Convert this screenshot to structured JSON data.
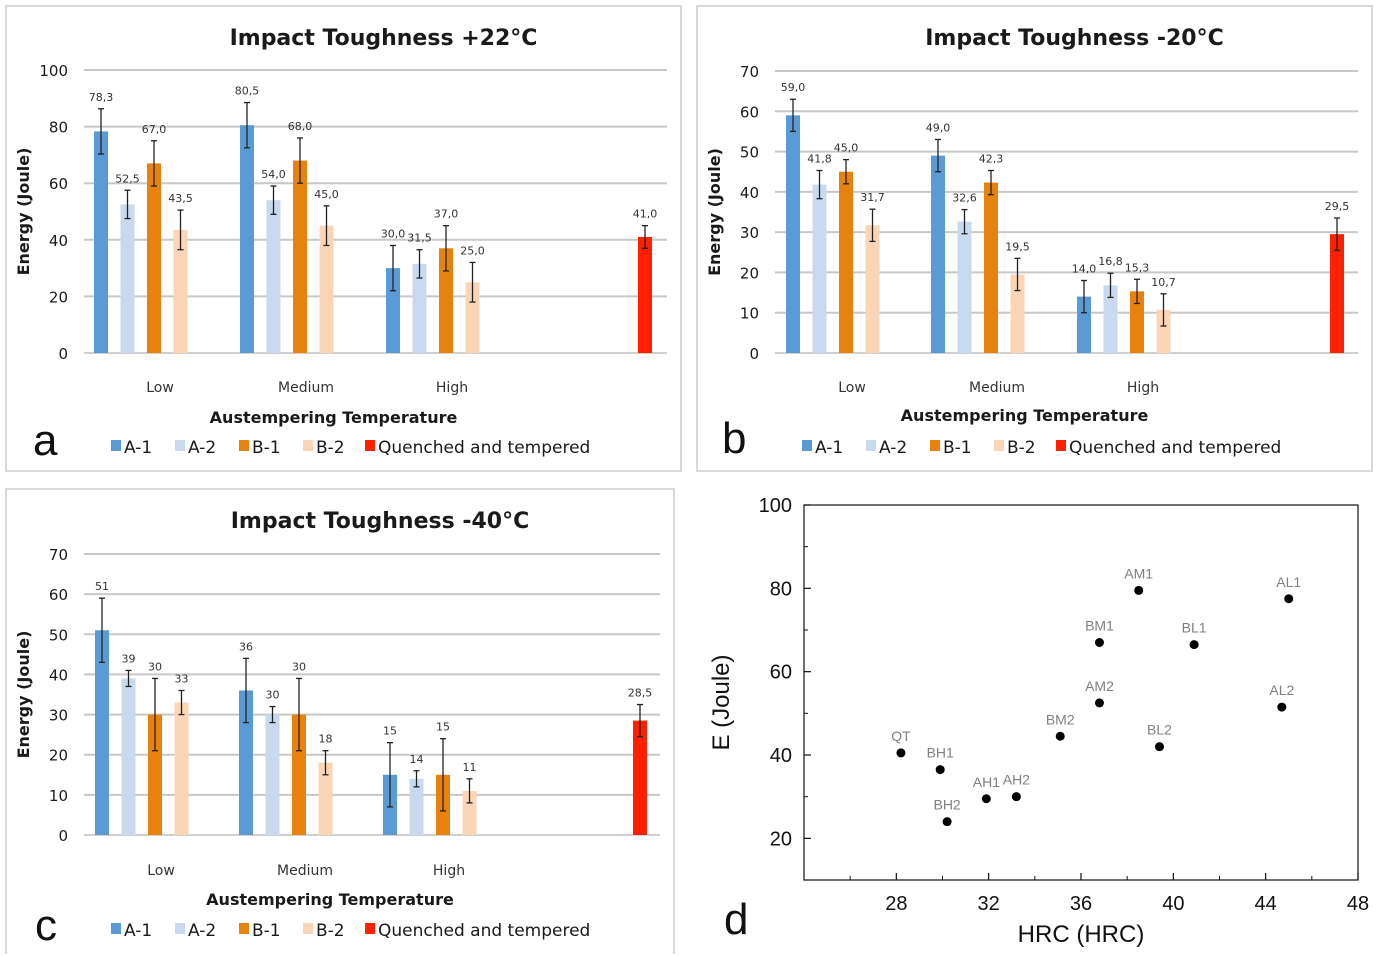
{
  "colors": {
    "A-1": "#5b9bd5",
    "A-2": "#c9daf0",
    "B-1": "#e8820e",
    "B-2": "#fbd5b5",
    "Quenched and tempered": "#ff2000"
  },
  "panels": [
    {
      "letter": "a",
      "chart_data": {
        "type": "bar",
        "title": "Impact Toughness +22°C",
        "xlabel": "Austempering Temperature",
        "ylabel": "Energy (Joule)",
        "ylim": [
          0,
          100
        ],
        "yticks": [
          0,
          20,
          40,
          60,
          80,
          100
        ],
        "categories": [
          "Low",
          "Medium",
          "High"
        ],
        "series": [
          {
            "name": "A-1",
            "values": [
              78.3,
              80.5,
              30.0
            ],
            "errors": [
              8,
              8,
              8
            ],
            "labels": [
              "78,3",
              "80,5",
              "30,0"
            ]
          },
          {
            "name": "A-2",
            "values": [
              52.5,
              54.0,
              31.5
            ],
            "errors": [
              5,
              5,
              5
            ],
            "labels": [
              "52,5",
              "54,0",
              "31,5"
            ]
          },
          {
            "name": "B-1",
            "values": [
              67.0,
              68.0,
              37.0
            ],
            "errors": [
              8,
              8,
              8
            ],
            "labels": [
              "67,0",
              "68,0",
              "37,0"
            ]
          },
          {
            "name": "B-2",
            "values": [
              43.5,
              45.0,
              25.0
            ],
            "errors": [
              7,
              7,
              7
            ],
            "labels": [
              "43,5",
              "45,0",
              "25,0"
            ]
          }
        ],
        "reference": {
          "name": "Quenched and tempered",
          "value": 41.0,
          "error": 4,
          "label": "41,0"
        },
        "legend": [
          "A-1",
          "A-2",
          "B-1",
          "B-2",
          "Quenched and tempered"
        ],
        "legend_position": "bottom",
        "grid": true
      }
    },
    {
      "letter": "b",
      "chart_data": {
        "type": "bar",
        "title": "Impact Toughness -20°C",
        "xlabel": "Austempering Temperature",
        "ylabel": "Energy (Joule)",
        "ylim": [
          0,
          70
        ],
        "yticks": [
          0,
          10,
          20,
          30,
          40,
          50,
          60,
          70
        ],
        "categories": [
          "Low",
          "Medium",
          "High"
        ],
        "series": [
          {
            "name": "A-1",
            "values": [
              59.0,
              49.0,
              14.0
            ],
            "errors": [
              4,
              4,
              4
            ],
            "labels": [
              "59,0",
              "49,0",
              "14,0"
            ]
          },
          {
            "name": "A-2",
            "values": [
              41.8,
              32.6,
              16.8
            ],
            "errors": [
              3.5,
              3,
              3
            ],
            "labels": [
              "41,8",
              "32,6",
              "16,8"
            ]
          },
          {
            "name": "B-1",
            "values": [
              45.0,
              42.3,
              15.3
            ],
            "errors": [
              3,
              3,
              3
            ],
            "labels": [
              "45,0",
              "42,3",
              "15,3"
            ]
          },
          {
            "name": "B-2",
            "values": [
              31.7,
              19.5,
              10.7
            ],
            "errors": [
              4,
              4,
              4
            ],
            "labels": [
              "31,7",
              "19,5",
              "10,7"
            ]
          }
        ],
        "reference": {
          "name": "Quenched and tempered",
          "value": 29.5,
          "error": 4,
          "label": "29,5"
        },
        "legend": [
          "A-1",
          "A-2",
          "B-1",
          "B-2",
          "Quenched and tempered"
        ],
        "legend_position": "bottom",
        "grid": true
      }
    },
    {
      "letter": "c",
      "chart_data": {
        "type": "bar",
        "title": "Impact Toughness -40°C",
        "xlabel": "Austempering Temperature",
        "ylabel": "Energy (Joule)",
        "ylim": [
          0,
          70
        ],
        "yticks": [
          0,
          10,
          20,
          30,
          40,
          50,
          60,
          70
        ],
        "categories": [
          "Low",
          "Medium",
          "High"
        ],
        "series": [
          {
            "name": "A-1",
            "values": [
              51,
              36,
              15
            ],
            "errors": [
              8,
              8,
              8
            ],
            "labels": [
              "51",
              "36",
              "15"
            ]
          },
          {
            "name": "A-2",
            "values": [
              39,
              30,
              14
            ],
            "errors": [
              2,
              2,
              2
            ],
            "labels": [
              "39",
              "30",
              "14"
            ]
          },
          {
            "name": "B-1",
            "values": [
              30,
              30,
              15
            ],
            "errors": [
              9,
              9,
              9
            ],
            "labels": [
              "30",
              "30",
              "15"
            ]
          },
          {
            "name": "B-2",
            "values": [
              33,
              18,
              11
            ],
            "errors": [
              3,
              3,
              3
            ],
            "labels": [
              "33",
              "18",
              "11"
            ]
          }
        ],
        "reference": {
          "name": "Quenched and tempered",
          "value": 28.5,
          "error": 4,
          "label": "28,5"
        },
        "legend": [
          "A-1",
          "A-2",
          "B-1",
          "B-2",
          "Quenched and tempered"
        ],
        "legend_position": "bottom",
        "grid": true
      }
    },
    {
      "letter": "d",
      "chart_data": {
        "type": "scatter",
        "title": "",
        "xlabel": "HRC (HRC)",
        "ylabel": "E (Joule)",
        "xlim": [
          24,
          48
        ],
        "ylim": [
          10,
          100
        ],
        "xticks": [
          28,
          32,
          36,
          40,
          44,
          48
        ],
        "yticks": [
          20,
          40,
          60,
          80,
          100
        ],
        "points": [
          {
            "label": "QT",
            "x": 28.2,
            "y": 40.5
          },
          {
            "label": "BH1",
            "x": 29.9,
            "y": 36.5
          },
          {
            "label": "BH2",
            "x": 30.2,
            "y": 24.0
          },
          {
            "label": "AH1",
            "x": 31.9,
            "y": 29.5
          },
          {
            "label": "AH2",
            "x": 33.2,
            "y": 30.0
          },
          {
            "label": "BM2",
            "x": 35.1,
            "y": 44.5
          },
          {
            "label": "AM2",
            "x": 36.8,
            "y": 52.5
          },
          {
            "label": "BM1",
            "x": 36.8,
            "y": 67.0
          },
          {
            "label": "AM1",
            "x": 38.5,
            "y": 79.5
          },
          {
            "label": "BL2",
            "x": 39.4,
            "y": 42.0
          },
          {
            "label": "BL1",
            "x": 40.9,
            "y": 66.5
          },
          {
            "label": "AL2",
            "x": 44.7,
            "y": 51.5
          },
          {
            "label": "AL1",
            "x": 45.0,
            "y": 77.5
          }
        ],
        "grid": false
      }
    }
  ]
}
